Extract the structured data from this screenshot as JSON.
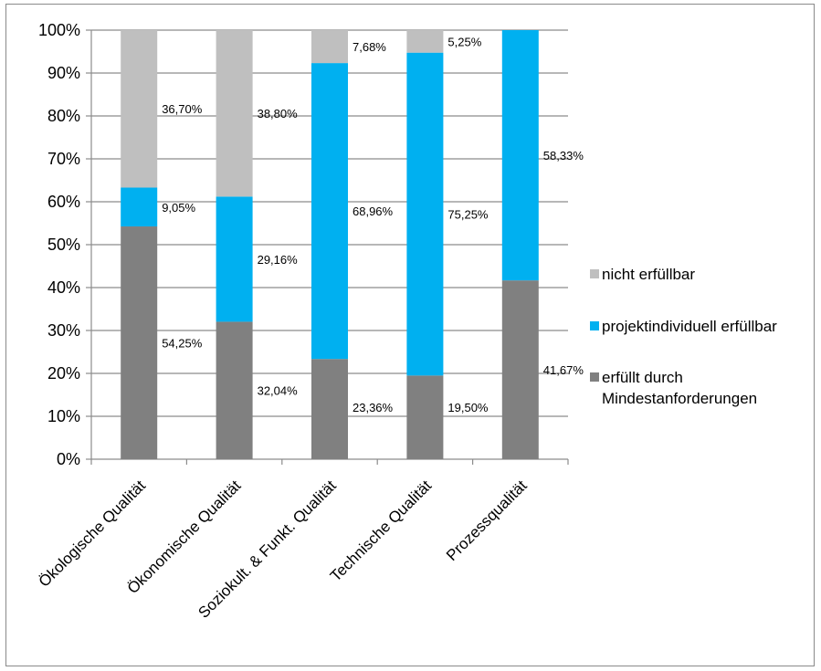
{
  "chart_data": {
    "type": "bar",
    "stacked": true,
    "percent": true,
    "categories": [
      "Ökologische Qualität",
      "Ökonomische Qualität",
      "Soziokult. & Funkt. Qualität",
      "Technische Qualität",
      "Prozessqualität"
    ],
    "series": [
      {
        "name": "erfüllt durch Mindestanforderungen",
        "name_lines": [
          "erfüllt durch",
          "Mindestanforderungen"
        ],
        "color": "#808080",
        "values": [
          54.25,
          32.04,
          23.36,
          19.5,
          41.67
        ],
        "labels": [
          "54,25%",
          "32,04%",
          "23,36%",
          "19,50%",
          "41,67%"
        ]
      },
      {
        "name": "projektindividuell erfüllbar",
        "name_lines": [
          "projektindividuell erfüllbar"
        ],
        "color": "#00b0f0",
        "values": [
          9.05,
          29.16,
          68.96,
          75.25,
          58.33
        ],
        "labels": [
          "9,05%",
          "29,16%",
          "68,96%",
          "75,25%",
          "58,33%"
        ]
      },
      {
        "name": "nicht erfüllbar",
        "name_lines": [
          "nicht erfüllbar"
        ],
        "color": "#bfbfbf",
        "values": [
          36.7,
          38.8,
          7.68,
          5.25,
          0
        ],
        "labels": [
          "36,70%",
          "38,80%",
          "7,68%",
          "5,25%",
          ""
        ]
      }
    ],
    "ylim": [
      0,
      100
    ],
    "yticks": [
      "0%",
      "10%",
      "20%",
      "30%",
      "40%",
      "50%",
      "60%",
      "70%",
      "80%",
      "90%",
      "100%"
    ],
    "grid": true,
    "legend_position": "right"
  }
}
